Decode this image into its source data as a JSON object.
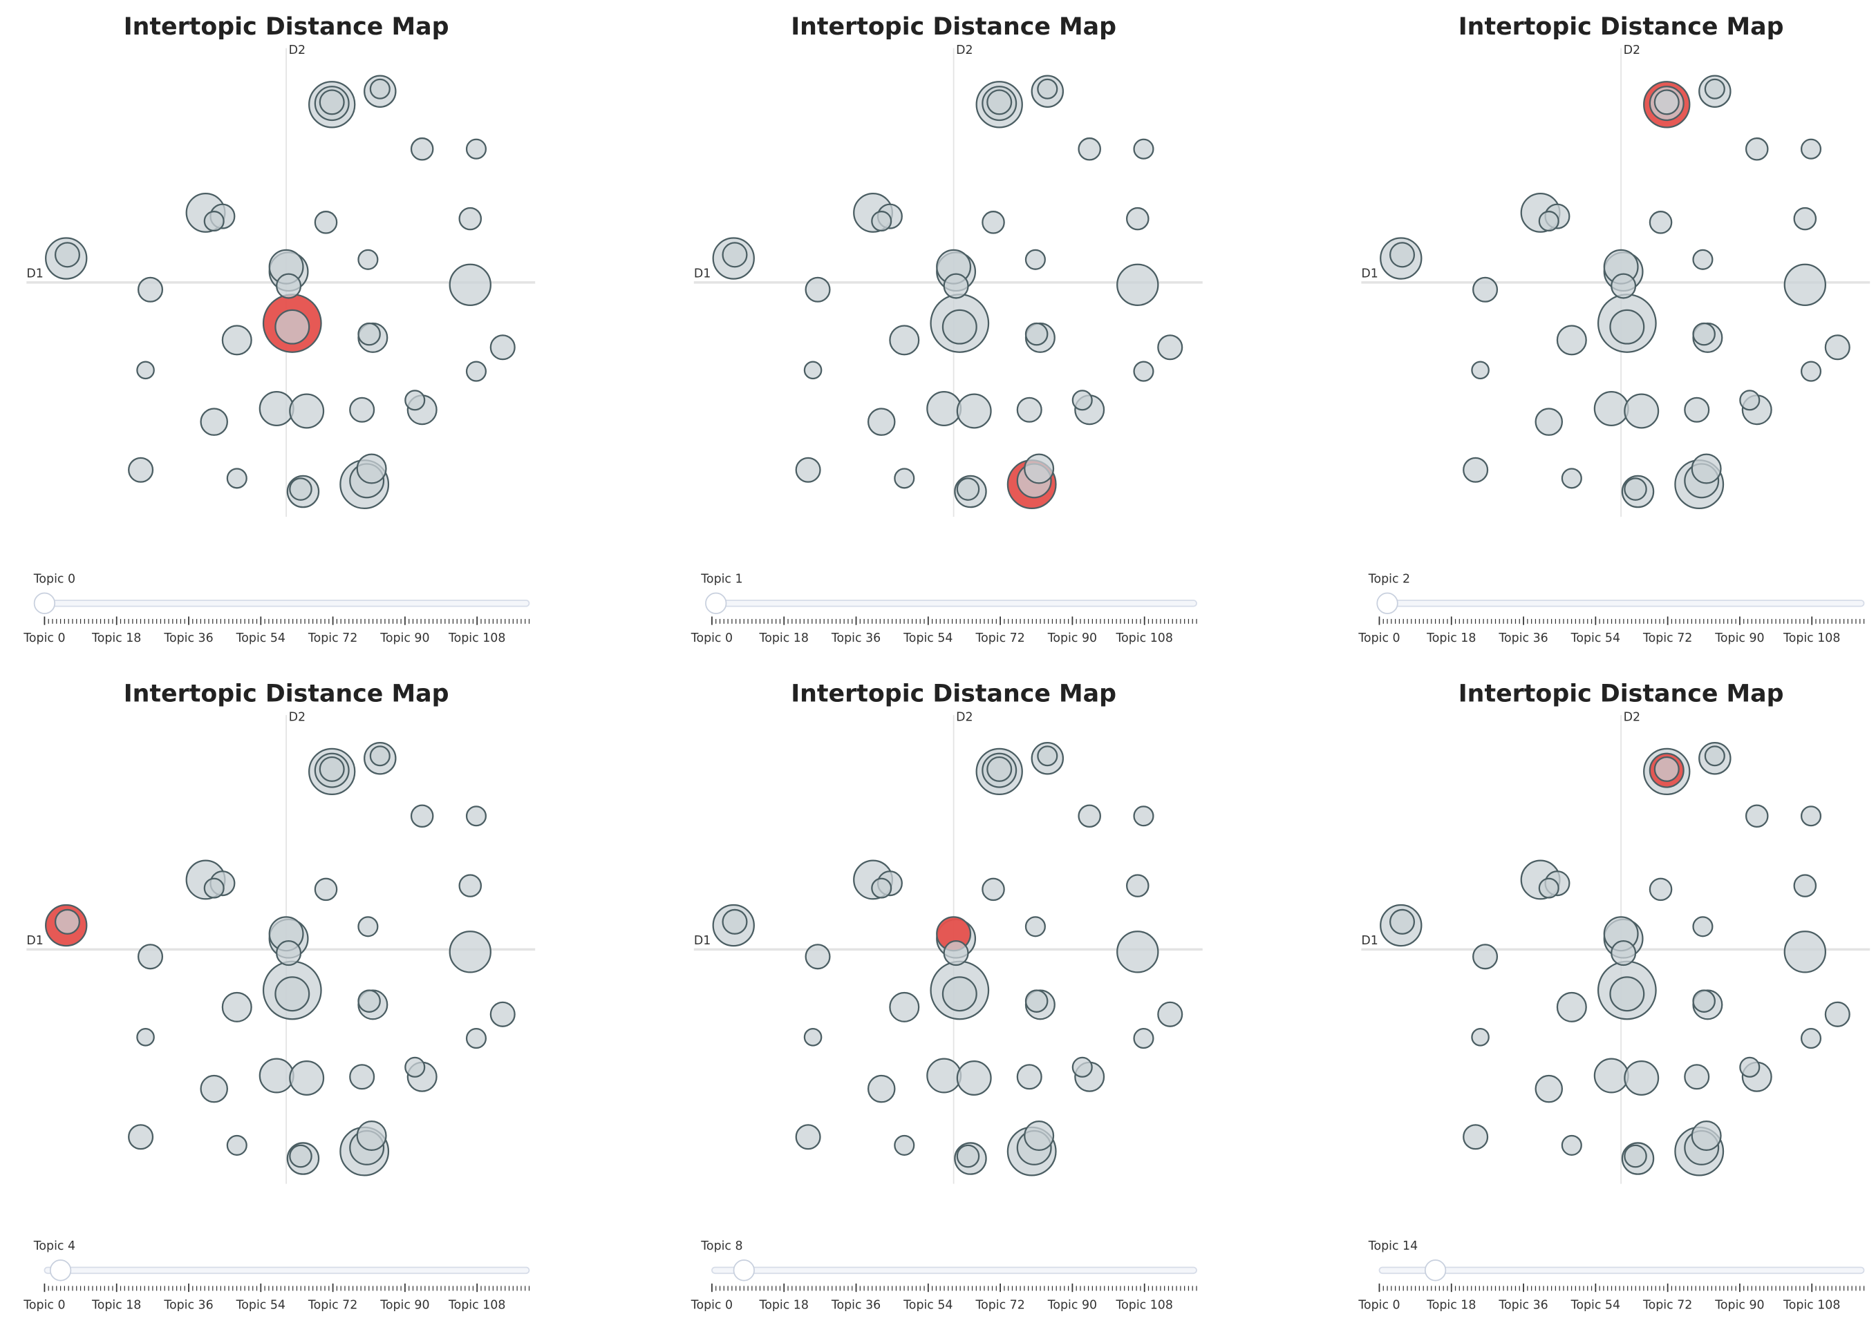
{
  "chart_data": [
    {
      "type": "scatter",
      "title": "Intertopic Distance Map",
      "x_label": "D1",
      "y_label": "D2",
      "xlim": [
        -216,
        207
      ],
      "ylim": [
        -195,
        195
      ],
      "color": "#c9d1d5",
      "stroke": "#4b5e63",
      "highlight_color": "#e5504c",
      "x": [
        5,
        65,
        38,
        2,
        -183,
        -67,
        153,
        78,
        0,
        -60,
        -8,
        17,
        -41,
        72,
        38,
        71,
        14,
        113,
        -53,
        -121,
        -113,
        63,
        180,
        153,
        113,
        158,
        33,
        68,
        -41,
        -117,
        158,
        107,
        5,
        69,
        2,
        -60,
        12,
        67,
        -182,
        78,
        38
      ],
      "y": [
        -34,
        -168,
        148,
        9,
        20,
        58,
        -2,
        159,
        13,
        -116,
        -105,
        -107,
        -48,
        -46,
        149,
        -155,
        -174,
        -106,
        55,
        -156,
        -6,
        -106,
        -54,
        53,
        111,
        111,
        50,
        19,
        -163,
        -73,
        -74,
        -98,
        -37,
        -43,
        -3,
        51,
        -172,
        -165,
        23,
        161,
        150
      ],
      "sizes": [
        24,
        20,
        19,
        16,
        17,
        16,
        17,
        13,
        14,
        11,
        14,
        14,
        12,
        12,
        14,
        12,
        13,
        12,
        10,
        10,
        10,
        10,
        10,
        9,
        9,
        8,
        9,
        8,
        8,
        7,
        8,
        8,
        14,
        9,
        10,
        8,
        9,
        14,
        10,
        8,
        10
      ],
      "slider": {
        "current_label": "Topic 0",
        "value": 0,
        "range": [
          0,
          121
        ],
        "ticks": [
          {
            "value": 0,
            "label": "Topic 0"
          },
          {
            "value": 18,
            "label": "Topic 18"
          },
          {
            "value": 36,
            "label": "Topic 36"
          },
          {
            "value": 54,
            "label": "Topic 54"
          },
          {
            "value": 72,
            "label": "Topic 72"
          },
          {
            "value": 90,
            "label": "Topic 90"
          },
          {
            "value": 108,
            "label": "Topic 108"
          }
        ]
      }
    },
    {
      "type": "scatter",
      "title": "Intertopic Distance Map",
      "x_label": "D1",
      "y_label": "D2",
      "xlim": [
        -216,
        207
      ],
      "ylim": [
        -195,
        195
      ],
      "color": "#c9d1d5",
      "stroke": "#4b5e63",
      "highlight_color": "#e5504c",
      "x": [
        5,
        65,
        38,
        2,
        -183,
        -67,
        153,
        78,
        0,
        -60,
        -8,
        17,
        -41,
        72,
        38,
        71,
        14,
        113,
        -53,
        -121,
        -113,
        63,
        180,
        153,
        113,
        158,
        33,
        68,
        -41,
        -117,
        158,
        107,
        5,
        69,
        2,
        -60,
        12,
        67,
        -182,
        78,
        38
      ],
      "y": [
        -34,
        -168,
        148,
        9,
        20,
        58,
        -2,
        159,
        13,
        -116,
        -105,
        -107,
        -48,
        -46,
        149,
        -155,
        -174,
        -106,
        55,
        -156,
        -6,
        -106,
        -54,
        53,
        111,
        111,
        50,
        19,
        -163,
        -73,
        -74,
        -98,
        -37,
        -43,
        -3,
        51,
        -172,
        -165,
        23,
        161,
        150
      ],
      "sizes": [
        24,
        20,
        19,
        16,
        17,
        16,
        17,
        13,
        14,
        11,
        14,
        14,
        12,
        12,
        14,
        12,
        13,
        12,
        10,
        10,
        10,
        10,
        10,
        9,
        9,
        8,
        9,
        8,
        8,
        7,
        8,
        8,
        14,
        9,
        10,
        8,
        9,
        14,
        10,
        8,
        10
      ],
      "slider": {
        "current_label": "Topic 1",
        "value": 1,
        "range": [
          0,
          121
        ],
        "ticks": [
          {
            "value": 0,
            "label": "Topic 0"
          },
          {
            "value": 18,
            "label": "Topic 18"
          },
          {
            "value": 36,
            "label": "Topic 36"
          },
          {
            "value": 54,
            "label": "Topic 54"
          },
          {
            "value": 72,
            "label": "Topic 72"
          },
          {
            "value": 90,
            "label": "Topic 90"
          },
          {
            "value": 108,
            "label": "Topic 108"
          }
        ]
      }
    },
    {
      "type": "scatter",
      "title": "Intertopic Distance Map",
      "x_label": "D1",
      "y_label": "D2",
      "xlim": [
        -216,
        207
      ],
      "ylim": [
        -195,
        195
      ],
      "color": "#c9d1d5",
      "stroke": "#4b5e63",
      "highlight_color": "#e5504c",
      "x": [
        5,
        65,
        38,
        2,
        -183,
        -67,
        153,
        78,
        0,
        -60,
        -8,
        17,
        -41,
        72,
        38,
        71,
        14,
        113,
        -53,
        -121,
        -113,
        63,
        180,
        153,
        113,
        158,
        33,
        68,
        -41,
        -117,
        158,
        107,
        5,
        69,
        2,
        -60,
        12,
        67,
        -182,
        78,
        38
      ],
      "y": [
        -34,
        -168,
        148,
        9,
        20,
        58,
        -2,
        159,
        13,
        -116,
        -105,
        -107,
        -48,
        -46,
        149,
        -155,
        -174,
        -106,
        55,
        -156,
        -6,
        -106,
        -54,
        53,
        111,
        111,
        50,
        19,
        -163,
        -73,
        -74,
        -98,
        -37,
        -43,
        -3,
        51,
        -172,
        -165,
        23,
        161,
        150
      ],
      "sizes": [
        24,
        20,
        19,
        16,
        17,
        16,
        17,
        13,
        14,
        11,
        14,
        14,
        12,
        12,
        14,
        12,
        13,
        12,
        10,
        10,
        10,
        10,
        10,
        9,
        9,
        8,
        9,
        8,
        8,
        7,
        8,
        8,
        14,
        9,
        10,
        8,
        9,
        14,
        10,
        8,
        10
      ],
      "slider": {
        "current_label": "Topic 2",
        "value": 2,
        "range": [
          0,
          121
        ],
        "ticks": [
          {
            "value": 0,
            "label": "Topic 0"
          },
          {
            "value": 18,
            "label": "Topic 18"
          },
          {
            "value": 36,
            "label": "Topic 36"
          },
          {
            "value": 54,
            "label": "Topic 54"
          },
          {
            "value": 72,
            "label": "Topic 72"
          },
          {
            "value": 90,
            "label": "Topic 90"
          },
          {
            "value": 108,
            "label": "Topic 108"
          }
        ]
      }
    },
    {
      "type": "scatter",
      "title": "Intertopic Distance Map",
      "x_label": "D1",
      "y_label": "D2",
      "xlim": [
        -216,
        207
      ],
      "ylim": [
        -195,
        195
      ],
      "color": "#c9d1d5",
      "stroke": "#4b5e63",
      "highlight_color": "#e5504c",
      "x": [
        5,
        65,
        38,
        2,
        -183,
        -67,
        153,
        78,
        0,
        -60,
        -8,
        17,
        -41,
        72,
        38,
        71,
        14,
        113,
        -53,
        -121,
        -113,
        63,
        180,
        153,
        113,
        158,
        33,
        68,
        -41,
        -117,
        158,
        107,
        5,
        69,
        2,
        -60,
        12,
        67,
        -182,
        78,
        38
      ],
      "y": [
        -34,
        -168,
        148,
        9,
        20,
        58,
        -2,
        159,
        13,
        -116,
        -105,
        -107,
        -48,
        -46,
        149,
        -155,
        -174,
        -106,
        55,
        -156,
        -6,
        -106,
        -54,
        53,
        111,
        111,
        50,
        19,
        -163,
        -73,
        -74,
        -98,
        -37,
        -43,
        -3,
        51,
        -172,
        -165,
        23,
        161,
        150
      ],
      "sizes": [
        24,
        20,
        19,
        16,
        17,
        16,
        17,
        13,
        14,
        11,
        14,
        14,
        12,
        12,
        14,
        12,
        13,
        12,
        10,
        10,
        10,
        10,
        10,
        9,
        9,
        8,
        9,
        8,
        8,
        7,
        8,
        8,
        14,
        9,
        10,
        8,
        9,
        14,
        10,
        8,
        10
      ],
      "slider": {
        "current_label": "Topic 4",
        "value": 4,
        "range": [
          0,
          121
        ],
        "ticks": [
          {
            "value": 0,
            "label": "Topic 0"
          },
          {
            "value": 18,
            "label": "Topic 18"
          },
          {
            "value": 36,
            "label": "Topic 36"
          },
          {
            "value": 54,
            "label": "Topic 54"
          },
          {
            "value": 72,
            "label": "Topic 72"
          },
          {
            "value": 90,
            "label": "Topic 90"
          },
          {
            "value": 108,
            "label": "Topic 108"
          }
        ]
      }
    },
    {
      "type": "scatter",
      "title": "Intertopic Distance Map",
      "x_label": "D1",
      "y_label": "D2",
      "xlim": [
        -216,
        207
      ],
      "ylim": [
        -195,
        195
      ],
      "color": "#c9d1d5",
      "stroke": "#4b5e63",
      "highlight_color": "#e5504c",
      "x": [
        5,
        65,
        38,
        2,
        -183,
        -67,
        153,
        78,
        0,
        -60,
        -8,
        17,
        -41,
        72,
        38,
        71,
        14,
        113,
        -53,
        -121,
        -113,
        63,
        180,
        153,
        113,
        158,
        33,
        68,
        -41,
        -117,
        158,
        107,
        5,
        69,
        2,
        -60,
        12,
        67,
        -182,
        78,
        38
      ],
      "y": [
        -34,
        -168,
        148,
        9,
        20,
        58,
        -2,
        159,
        13,
        -116,
        -105,
        -107,
        -48,
        -46,
        149,
        -155,
        -174,
        -106,
        55,
        -156,
        -6,
        -106,
        -54,
        53,
        111,
        111,
        50,
        19,
        -163,
        -73,
        -74,
        -98,
        -37,
        -43,
        -3,
        51,
        -172,
        -165,
        23,
        161,
        150
      ],
      "sizes": [
        24,
        20,
        19,
        16,
        17,
        16,
        17,
        13,
        14,
        11,
        14,
        14,
        12,
        12,
        14,
        12,
        13,
        12,
        10,
        10,
        10,
        10,
        10,
        9,
        9,
        8,
        9,
        8,
        8,
        7,
        8,
        8,
        14,
        9,
        10,
        8,
        9,
        14,
        10,
        8,
        10
      ],
      "slider": {
        "current_label": "Topic 8",
        "value": 8,
        "range": [
          0,
          121
        ],
        "ticks": [
          {
            "value": 0,
            "label": "Topic 0"
          },
          {
            "value": 18,
            "label": "Topic 18"
          },
          {
            "value": 36,
            "label": "Topic 36"
          },
          {
            "value": 54,
            "label": "Topic 54"
          },
          {
            "value": 72,
            "label": "Topic 72"
          },
          {
            "value": 90,
            "label": "Topic 90"
          },
          {
            "value": 108,
            "label": "Topic 108"
          }
        ]
      }
    },
    {
      "type": "scatter",
      "title": "Intertopic Distance Map",
      "x_label": "D1",
      "y_label": "D2",
      "xlim": [
        -216,
        207
      ],
      "ylim": [
        -195,
        195
      ],
      "color": "#c9d1d5",
      "stroke": "#4b5e63",
      "highlight_color": "#e5504c",
      "x": [
        5,
        65,
        38,
        2,
        -183,
        -67,
        153,
        78,
        0,
        -60,
        -8,
        17,
        -41,
        72,
        38,
        71,
        14,
        113,
        -53,
        -121,
        -113,
        63,
        180,
        153,
        113,
        158,
        33,
        68,
        -41,
        -117,
        158,
        107,
        5,
        69,
        2,
        -60,
        12,
        67,
        -182,
        78,
        38
      ],
      "y": [
        -34,
        -168,
        148,
        9,
        20,
        58,
        -2,
        159,
        13,
        -116,
        -105,
        -107,
        -48,
        -46,
        149,
        -155,
        -174,
        -106,
        55,
        -156,
        -6,
        -106,
        -54,
        53,
        111,
        111,
        50,
        19,
        -163,
        -73,
        -74,
        -98,
        -37,
        -43,
        -3,
        51,
        -172,
        -165,
        23,
        161,
        150
      ],
      "sizes": [
        24,
        20,
        19,
        16,
        17,
        16,
        17,
        13,
        14,
        11,
        14,
        14,
        12,
        12,
        14,
        12,
        13,
        12,
        10,
        10,
        10,
        10,
        10,
        9,
        9,
        8,
        9,
        8,
        8,
        7,
        8,
        8,
        14,
        9,
        10,
        8,
        9,
        14,
        10,
        8,
        10
      ],
      "slider": {
        "current_label": "Topic 14",
        "value": 14,
        "range": [
          0,
          121
        ],
        "ticks": [
          {
            "value": 0,
            "label": "Topic 0"
          },
          {
            "value": 18,
            "label": "Topic 18"
          },
          {
            "value": 36,
            "label": "Topic 36"
          },
          {
            "value": 54,
            "label": "Topic 54"
          },
          {
            "value": 72,
            "label": "Topic 72"
          },
          {
            "value": 90,
            "label": "Topic 90"
          },
          {
            "value": 108,
            "label": "Topic 108"
          }
        ]
      }
    }
  ]
}
